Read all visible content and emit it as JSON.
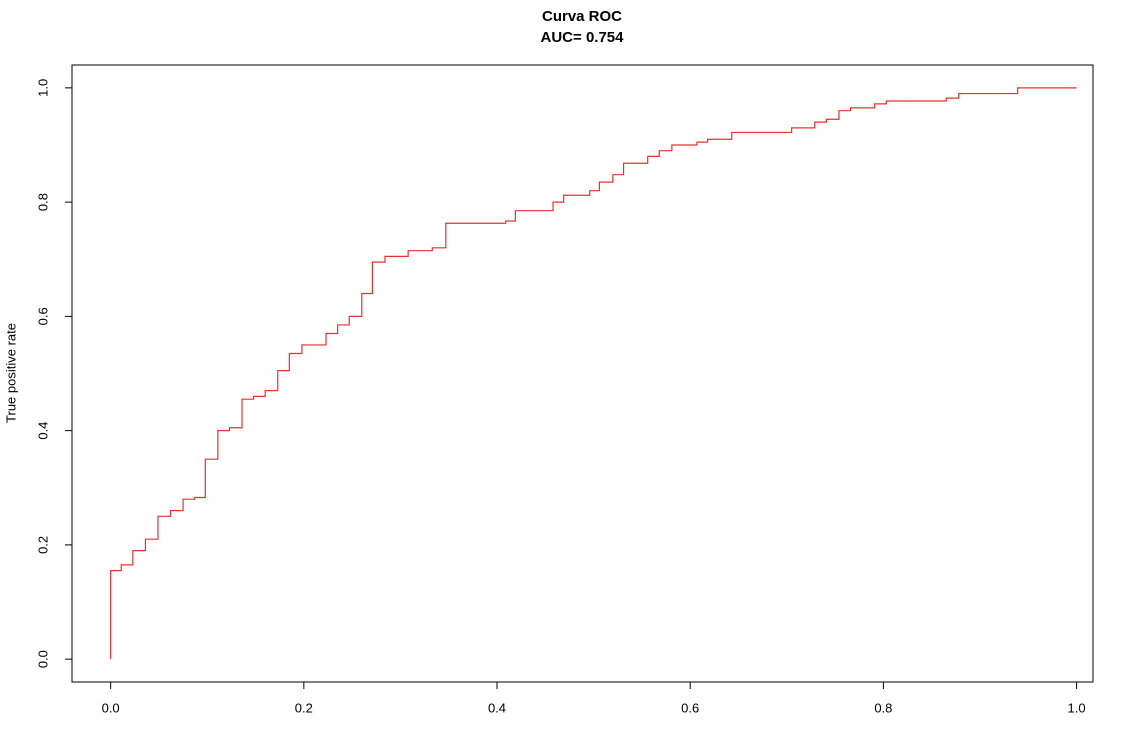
{
  "chart_data": {
    "type": "line",
    "title": "Curva ROC",
    "subtitle": "AUC= 0.754",
    "y_label": "True positive rate",
    "x": [
      0,
      0,
      0.011,
      0.011,
      0.023,
      0.023,
      0.036,
      0.036,
      0.049,
      0.049,
      0.062,
      0.062,
      0.075,
      0.075,
      0.087,
      0.087,
      0.098,
      0.098,
      0.111,
      0.111,
      0.123,
      0.123,
      0.136,
      0.136,
      0.148,
      0.148,
      0.16,
      0.16,
      0.173,
      0.173,
      0.185,
      0.185,
      0.198,
      0.198,
      0.223,
      0.223,
      0.235,
      0.235,
      0.247,
      0.247,
      0.26,
      0.26,
      0.271,
      0.271,
      0.284,
      0.284,
      0.308,
      0.308,
      0.333,
      0.333,
      0.347,
      0.347,
      0.409,
      0.409,
      0.419,
      0.419,
      0.458,
      0.458,
      0.469,
      0.469,
      0.496,
      0.496,
      0.506,
      0.506,
      0.52,
      0.52,
      0.531,
      0.531,
      0.556,
      0.556,
      0.568,
      0.568,
      0.581,
      0.581,
      0.607,
      0.607,
      0.618,
      0.618,
      0.643,
      0.643,
      0.705,
      0.705,
      0.729,
      0.729,
      0.741,
      0.741,
      0.754,
      0.754,
      0.766,
      0.766,
      0.791,
      0.791,
      0.803,
      0.803,
      0.865,
      0.865,
      0.878,
      0.878,
      0.939,
      0.939,
      1
    ],
    "series": [
      {
        "color": "#e8322e",
        "values": [
          0,
          0.155,
          0.155,
          0.165,
          0.165,
          0.19,
          0.19,
          0.21,
          0.21,
          0.25,
          0.25,
          0.26,
          0.26,
          0.28,
          0.28,
          0.283,
          0.283,
          0.35,
          0.35,
          0.4,
          0.4,
          0.405,
          0.405,
          0.455,
          0.455,
          0.46,
          0.46,
          0.47,
          0.47,
          0.505,
          0.505,
          0.535,
          0.535,
          0.55,
          0.55,
          0.57,
          0.57,
          0.585,
          0.585,
          0.6,
          0.6,
          0.64,
          0.64,
          0.695,
          0.695,
          0.705,
          0.705,
          0.715,
          0.715,
          0.72,
          0.72,
          0.763,
          0.763,
          0.767,
          0.767,
          0.785,
          0.785,
          0.8,
          0.8,
          0.812,
          0.812,
          0.82,
          0.82,
          0.835,
          0.835,
          0.848,
          0.848,
          0.868,
          0.868,
          0.88,
          0.88,
          0.89,
          0.89,
          0.9,
          0.9,
          0.905,
          0.905,
          0.91,
          0.91,
          0.922,
          0.922,
          0.93,
          0.93,
          0.94,
          0.94,
          0.945,
          0.945,
          0.96,
          0.96,
          0.965,
          0.965,
          0.972,
          0.972,
          0.977,
          0.977,
          0.982,
          0.982,
          0.99,
          0.99,
          1,
          1
        ]
      }
    ],
    "xlim": [
      -0.04,
      1.017
    ],
    "ylim": [
      -0.04,
      1.04
    ],
    "xticks": [
      {
        "value": 0,
        "label": "0.0"
      },
      0.2,
      0.4,
      0.6,
      0.8,
      {
        "value": 1,
        "label": "1.0"
      }
    ],
    "yticks": [
      {
        "value": 0,
        "label": "0.0"
      },
      0.2,
      0.4,
      0.6,
      0.8,
      {
        "value": 1,
        "label": "1.0"
      }
    ]
  }
}
